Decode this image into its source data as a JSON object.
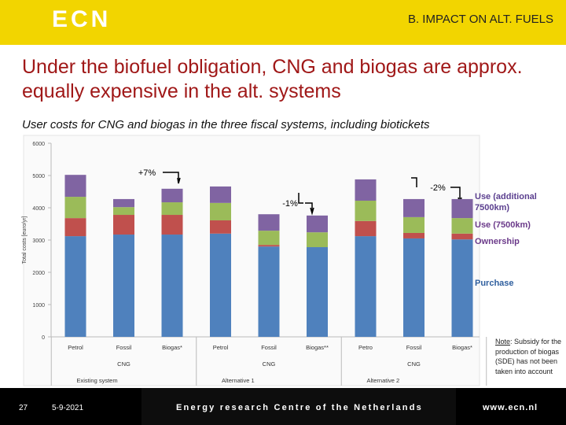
{
  "header": {
    "logo": "ECN",
    "title": "B. IMPACT ON ALT. FUELS"
  },
  "title": "Under the biofuel obligation, CNG and biogas are approx. equally expensive in the alt. systems",
  "subtitle": "User costs for CNG and biogas in the three fiscal systems, including biotickets",
  "chart_data": {
    "type": "stacked-bar",
    "y_label": "Total costs [euro/yr]",
    "categories": [
      "Petrol",
      "Fossil",
      "Biogas*",
      "Petrol",
      "Fossil",
      "Biogas**",
      "Petro",
      "Fossil",
      "Biogas*"
    ],
    "sub_groups": [
      "CNG",
      "CNG",
      "CNG"
    ],
    "groups": [
      "Existing system",
      "Alternative 1",
      "Alternative 2"
    ],
    "series": [
      {
        "name": "Purchase",
        "color": "#4f81bd",
        "values": [
          3120,
          3170,
          3170,
          3200,
          2800,
          2780,
          3120,
          3050,
          3020
        ]
      },
      {
        "name": "Ownership",
        "color": "#c0504d",
        "values": [
          560,
          610,
          610,
          410,
          50,
          0,
          470,
          170,
          180
        ]
      },
      {
        "name": "Use (7500km)",
        "color": "#9bbb59",
        "values": [
          660,
          240,
          390,
          540,
          440,
          460,
          630,
          490,
          480
        ]
      },
      {
        "name": "Use (additional 7500km)",
        "color": "#8064a2",
        "values": [
          680,
          250,
          420,
          510,
          510,
          520,
          660,
          560,
          590
        ]
      }
    ],
    "ylim": [
      0,
      6000
    ],
    "yticks": [
      0,
      1000,
      2000,
      3000,
      4000,
      5000,
      6000
    ],
    "annotations": [
      "+7%",
      "-1%",
      "-2%"
    ]
  },
  "note": {
    "label": "Note",
    "text": ": Subsidy for the production of biogas (SDE) has not been taken into account"
  },
  "footer": {
    "page": "27",
    "date": "5-9-2021",
    "organization": "Energy research Centre of the Netherlands",
    "url": "www.ecn.nl"
  }
}
